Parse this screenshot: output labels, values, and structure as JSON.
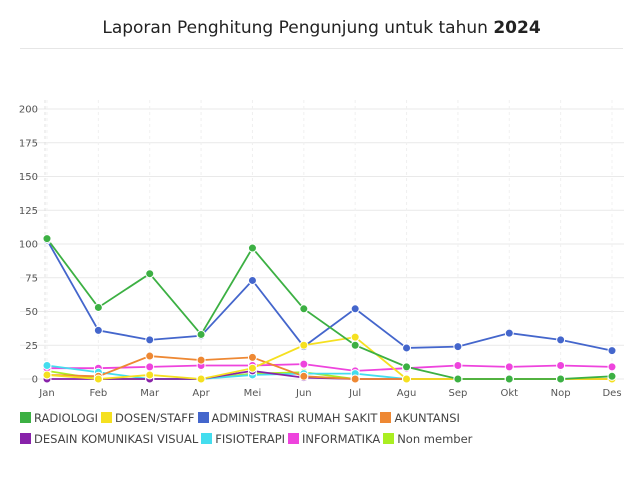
{
  "header": {
    "title_prefix": "Laporan Penghitung Pengunjung untuk tahun",
    "title_year": "2024"
  },
  "chart_data": {
    "type": "line",
    "categories": [
      "Jan",
      "Feb",
      "Mar",
      "Apr",
      "Mei",
      "Jun",
      "Jul",
      "Agu",
      "Sep",
      "Okt",
      "Nop",
      "Des"
    ],
    "ylim": [
      0,
      200
    ],
    "yticks": [
      0,
      25,
      50,
      75,
      100,
      125,
      150,
      175,
      200
    ],
    "legend_position": "bottom",
    "grid": true,
    "series": [
      {
        "name": "RADIOLOGI",
        "color": "#3cb043",
        "values": [
          104,
          53,
          78,
          33,
          97,
          52,
          25,
          9,
          0,
          0,
          0,
          2
        ]
      },
      {
        "name": "DOSEN/STAFF",
        "color": "#f5e020",
        "values": [
          3,
          0,
          3,
          0,
          8,
          25,
          31,
          0,
          0,
          0,
          0,
          0
        ]
      },
      {
        "name": "ADMINISTRASI RUMAH SAKIT",
        "color": "#4466cc",
        "values": [
          103,
          36,
          29,
          32,
          73,
          24,
          52,
          23,
          24,
          34,
          29,
          21
        ]
      },
      {
        "name": "AKUNTANSI",
        "color": "#ee8833",
        "values": [
          3,
          2,
          17,
          14,
          16,
          2,
          0,
          0,
          0,
          0,
          0,
          0
        ]
      },
      {
        "name": "DESAIN KOMUNIKASI VISUAL",
        "color": "#8822aa",
        "values": [
          0,
          0,
          0,
          0,
          6,
          1,
          0,
          0,
          0,
          0,
          0,
          0
        ]
      },
      {
        "name": "FISIOTERAPI",
        "color": "#44ddee",
        "values": [
          10,
          5,
          0,
          0,
          3,
          4,
          4,
          0,
          0,
          0,
          0,
          0
        ]
      },
      {
        "name": "INFORMATIKA",
        "color": "#ee44dd",
        "values": [
          8,
          8,
          9,
          10,
          10,
          11,
          6,
          8,
          10,
          9,
          10,
          9
        ]
      },
      {
        "name": "Non member",
        "color": "#aaee22",
        "values": [
          6,
          0,
          0,
          0,
          4,
          5,
          0,
          0,
          0,
          0,
          0,
          0
        ]
      }
    ]
  }
}
